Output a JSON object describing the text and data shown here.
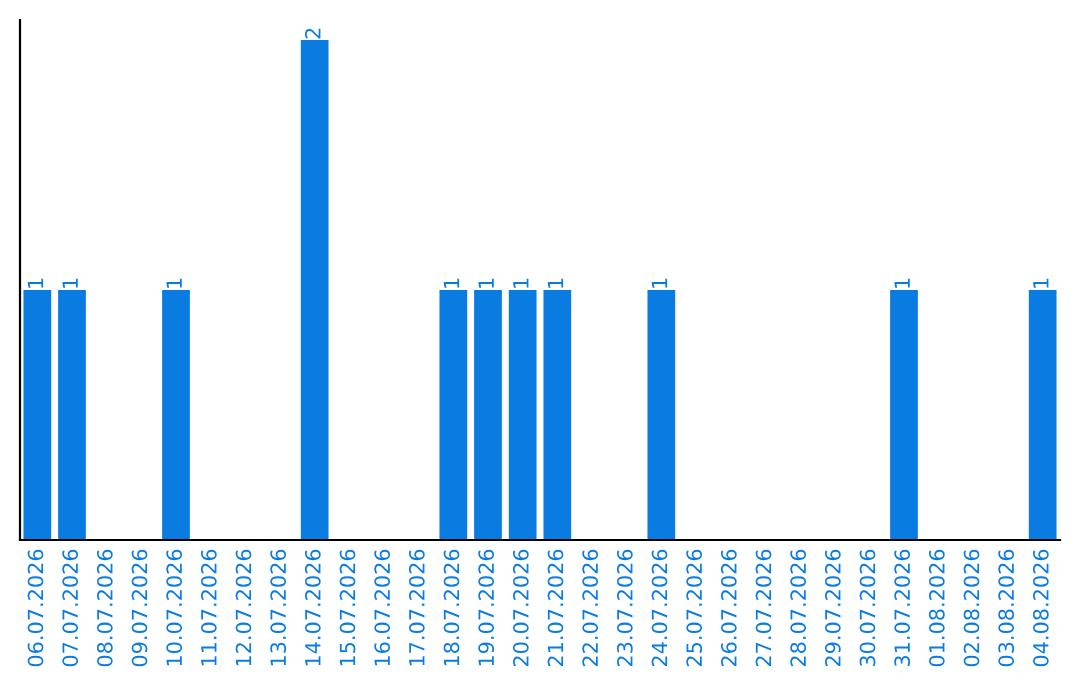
{
  "chart_data": {
    "type": "bar",
    "categories": [
      "06.07.2026",
      "07.07.2026",
      "08.07.2026",
      "09.07.2026",
      "10.07.2026",
      "11.07.2026",
      "12.07.2026",
      "13.07.2026",
      "14.07.2026",
      "15.07.2026",
      "16.07.2026",
      "17.07.2026",
      "18.07.2026",
      "19.07.2026",
      "20.07.2026",
      "21.07.2026",
      "22.07.2026",
      "23.07.2026",
      "24.07.2026",
      "25.07.2026",
      "26.07.2026",
      "27.07.2026",
      "28.07.2026",
      "29.07.2026",
      "30.07.2026",
      "31.07.2026",
      "01.08.2026",
      "02.08.2026",
      "03.08.2026",
      "04.08.2026"
    ],
    "values": [
      1,
      1,
      0,
      0,
      1,
      0,
      0,
      0,
      2,
      0,
      0,
      0,
      1,
      1,
      1,
      1,
      0,
      0,
      1,
      0,
      0,
      0,
      0,
      0,
      0,
      1,
      0,
      0,
      0,
      1
    ],
    "value_labels": [
      "1",
      "1",
      null,
      null,
      "1",
      null,
      null,
      null,
      "2",
      null,
      null,
      null,
      "1",
      "1",
      "1",
      "1",
      null,
      null,
      "1",
      null,
      null,
      null,
      null,
      null,
      null,
      "1",
      null,
      null,
      null,
      "1"
    ],
    "color": "#0a7be0",
    "ylim": [
      0,
      2.08
    ],
    "tick_labels": "x",
    "grid": false
  }
}
